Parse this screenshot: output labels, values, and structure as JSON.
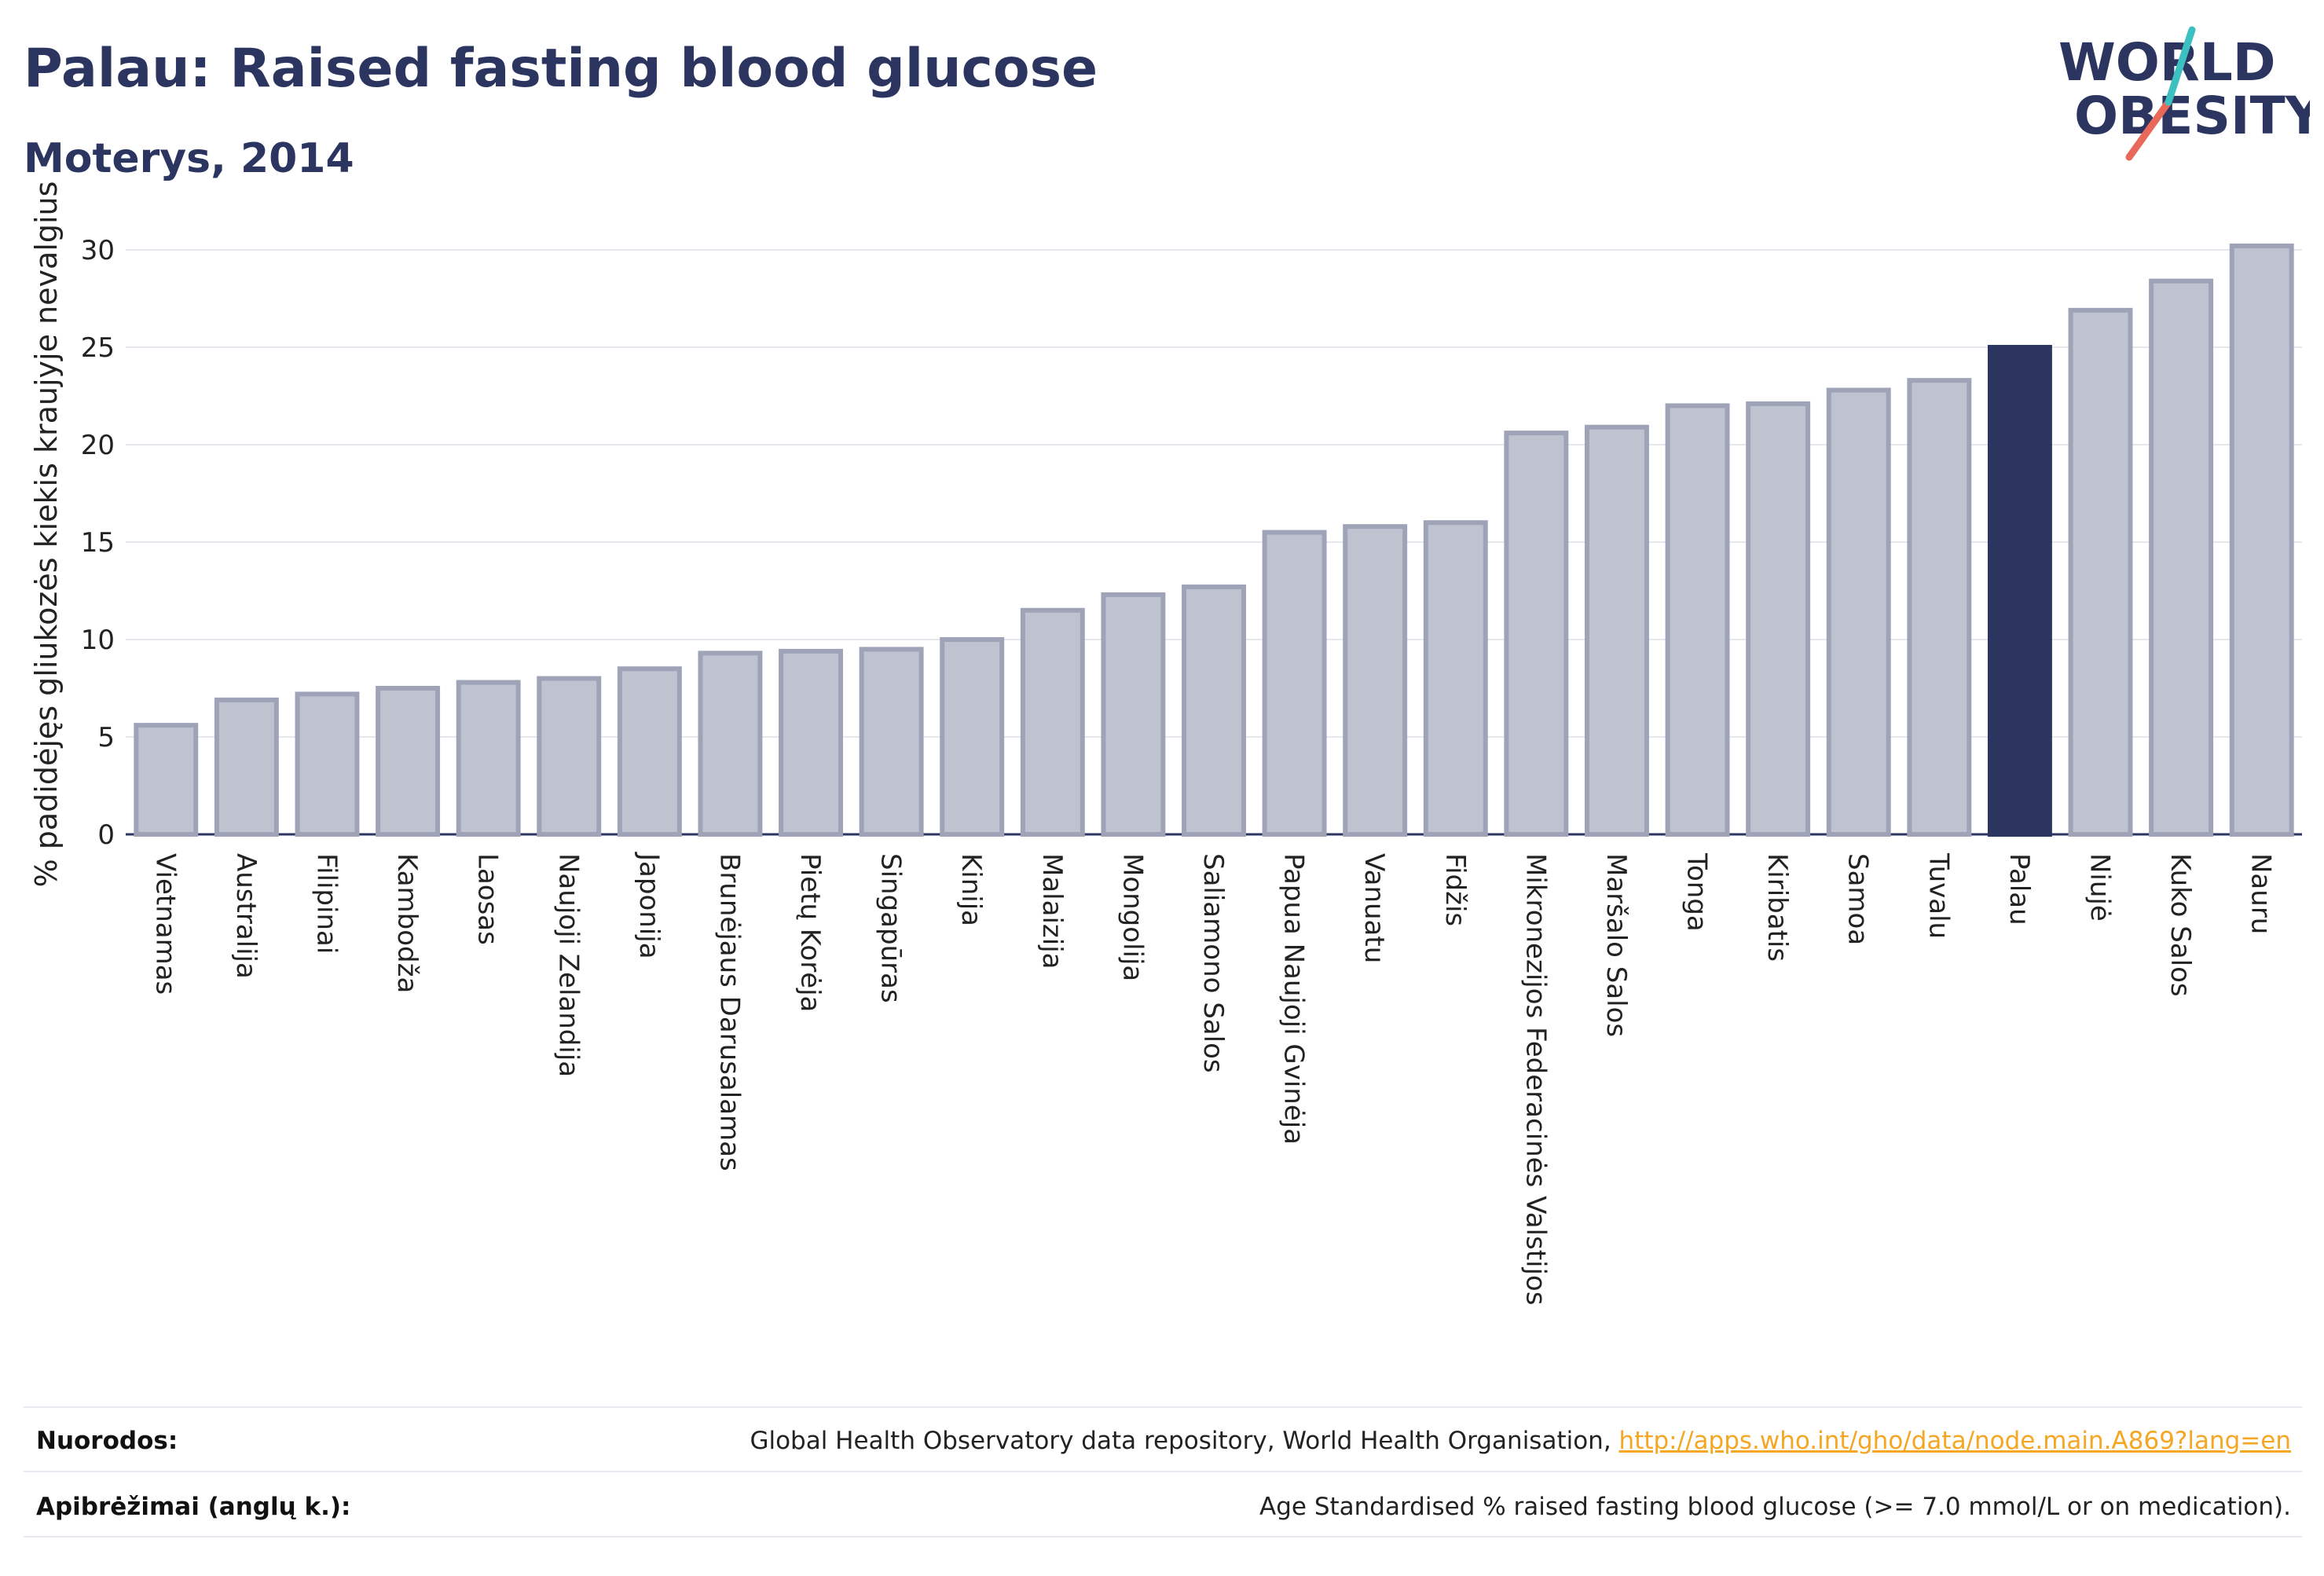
{
  "header": {
    "title": "Palau: Raised fasting blood glucose",
    "subtitle": "Moterys, 2014"
  },
  "logo": {
    "line1": "WORLD",
    "line2": "OBESITY"
  },
  "chart_data": {
    "type": "bar",
    "ylabel": "% padidėjęs gliukozės kiekis kraujyje nevalgius",
    "ylim": [
      0,
      31
    ],
    "yticks": [
      0,
      5,
      10,
      15,
      20,
      25,
      30
    ],
    "grid": true,
    "highlight": "Palau",
    "colors": {
      "bar": "#bfc3d0",
      "bar_border": "#9ea3b8",
      "highlight": "#2b3560",
      "grid": "#e6e7ec"
    },
    "categories": [
      "Vietnamas",
      "Australija",
      "Filipinai",
      "Kambodža",
      "Laosas",
      "Naujoji Zelandija",
      "Japonija",
      "Brunėjaus Darusalamas",
      "Pietų Korėja",
      "Singapūras",
      "Kinija",
      "Malaizija",
      "Mongolija",
      "Saliamono Salos",
      "Papua Naujoji Gvinėja",
      "Vanuatu",
      "Fidžis",
      "Mikronezijos Federacinės Valstijos",
      "Maršalo Salos",
      "Tonga",
      "Kiribatis",
      "Samoa",
      "Tuvalu",
      "Palau",
      "Niujė",
      "Kuko Salos",
      "Nauru"
    ],
    "values": [
      5.6,
      6.9,
      7.2,
      7.5,
      7.8,
      8.0,
      8.5,
      9.3,
      9.4,
      9.5,
      10.0,
      11.5,
      12.3,
      12.7,
      15.5,
      15.8,
      16.0,
      20.6,
      20.9,
      22.0,
      22.1,
      22.8,
      23.3,
      25.0,
      26.9,
      28.4,
      30.2
    ]
  },
  "footer": {
    "sources_label": "Nuorodos:",
    "sources_text": "Global Health Observatory data repository, World Health Organisation, ",
    "sources_link": "http://apps.who.int/gho/data/node.main.A869?lang=en",
    "definitions_label": "Apibrėžimai (anglų k.):",
    "definitions_text": "Age Standardised % raised fasting blood glucose (>= 7.0 mmol/L or on medication)."
  }
}
